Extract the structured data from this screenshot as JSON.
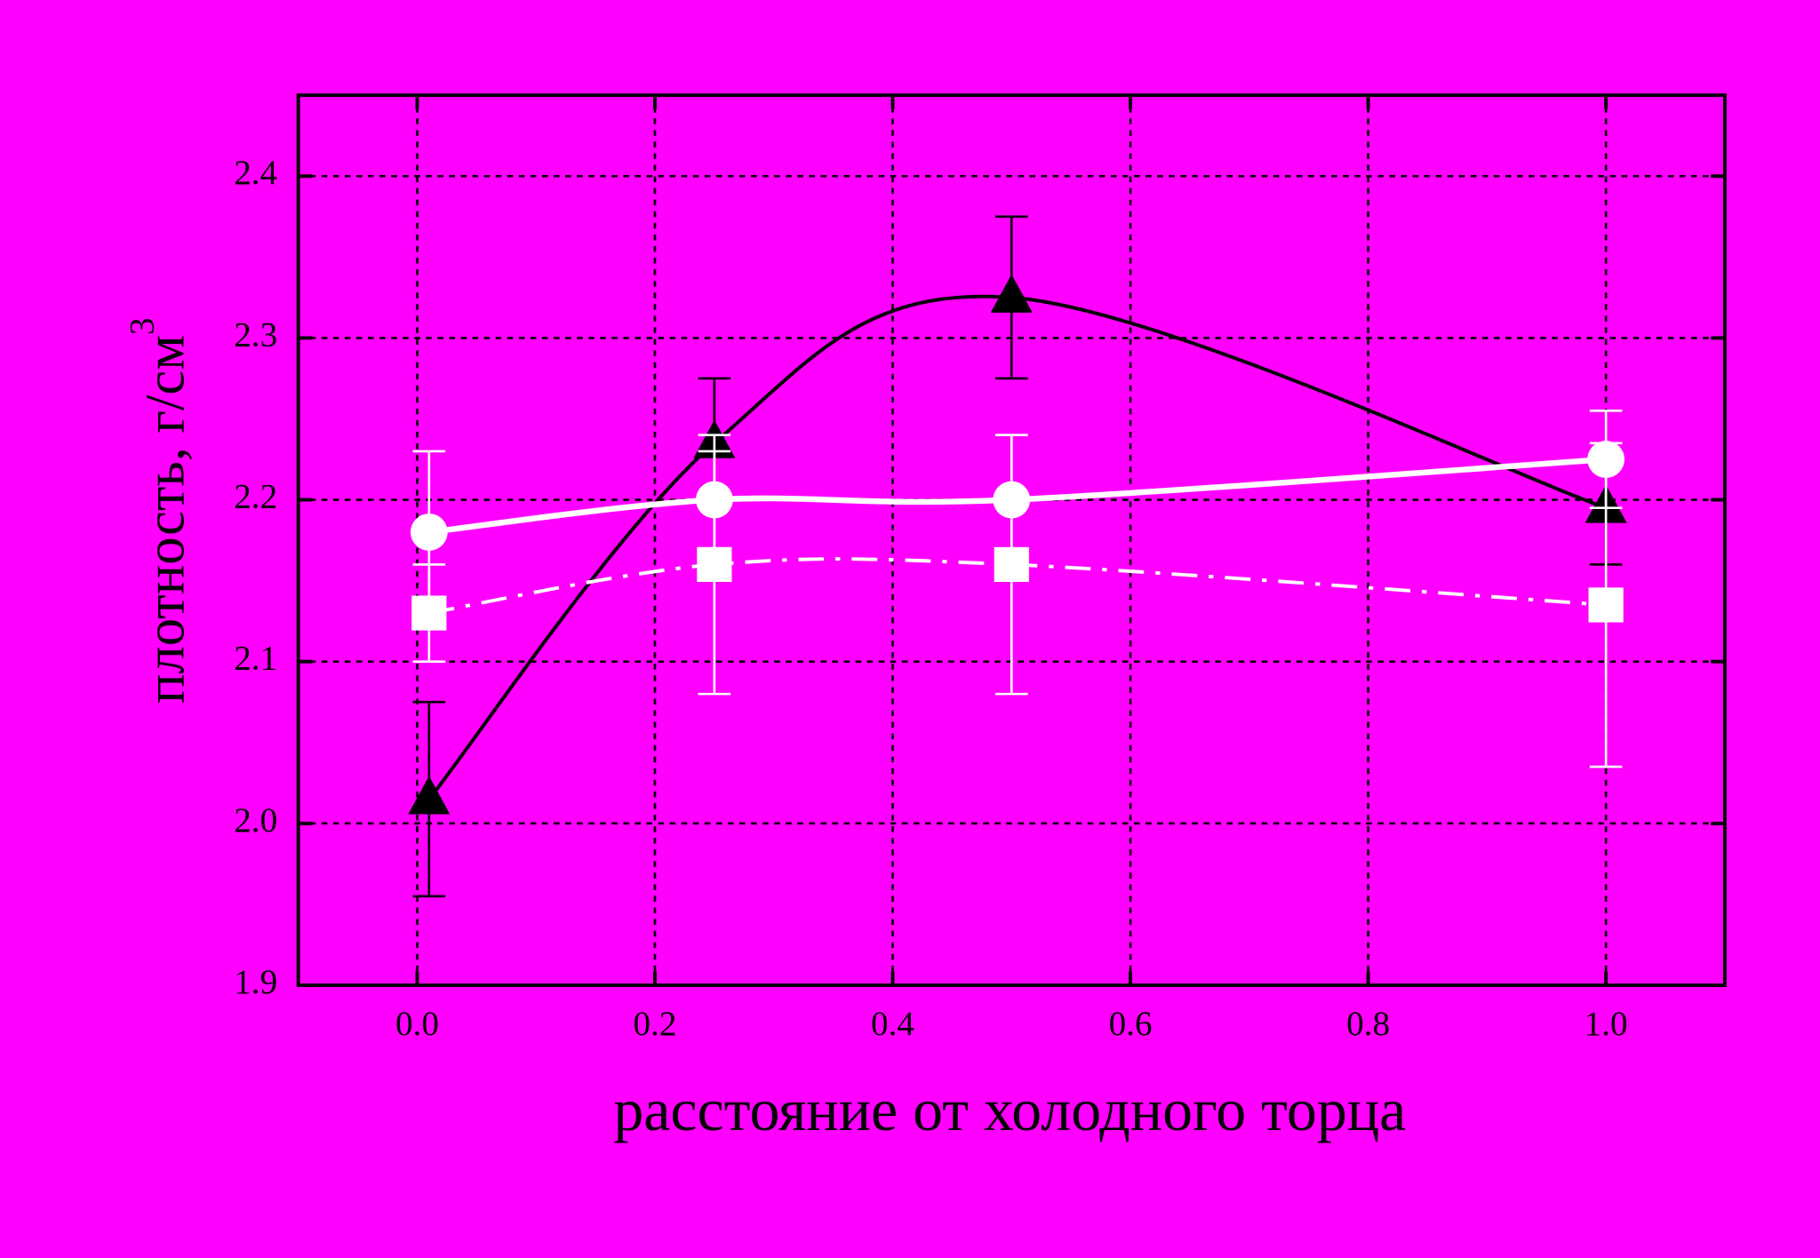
{
  "chart_data": {
    "type": "scatter",
    "xlabel": "расстояние от холодного торца",
    "ylabel": "плотность, г/см",
    "ylabel_superscript": "3",
    "x": [
      0.01,
      0.25,
      0.5,
      1.0
    ],
    "series": [
      {
        "color": "#000000",
        "marker": "triangle",
        "line": "solid",
        "values": [
          2.015,
          2.235,
          2.325,
          2.195
        ],
        "errors": [
          0.06,
          0.04,
          0.05,
          0.035
        ]
      },
      {
        "color": "#ffffff",
        "marker": "circle",
        "line": "solid",
        "values": [
          2.18,
          2.2,
          2.2,
          2.225
        ],
        "errors": [
          0.05,
          0.03,
          0.04,
          0.03
        ]
      },
      {
        "color": "#ffffff",
        "marker": "square",
        "line": "dash-dot",
        "values": [
          2.13,
          2.16,
          2.16,
          2.135
        ],
        "errors": [
          0.03,
          0.08,
          0.08,
          0.1
        ]
      }
    ],
    "xlim": [
      -0.1,
      1.1
    ],
    "ylim": [
      1.9,
      2.45
    ],
    "xticks": [
      {
        "value": 0,
        "label": "0.0"
      },
      0.2,
      0.4,
      0.6,
      0.8,
      {
        "value": 1,
        "label": "1.0"
      }
    ],
    "yticks": [
      1.9,
      {
        "value": 2,
        "label": "2.0"
      },
      2.1,
      2.2,
      2.3,
      2.4
    ],
    "grid": true,
    "background": "#ff00ff"
  }
}
